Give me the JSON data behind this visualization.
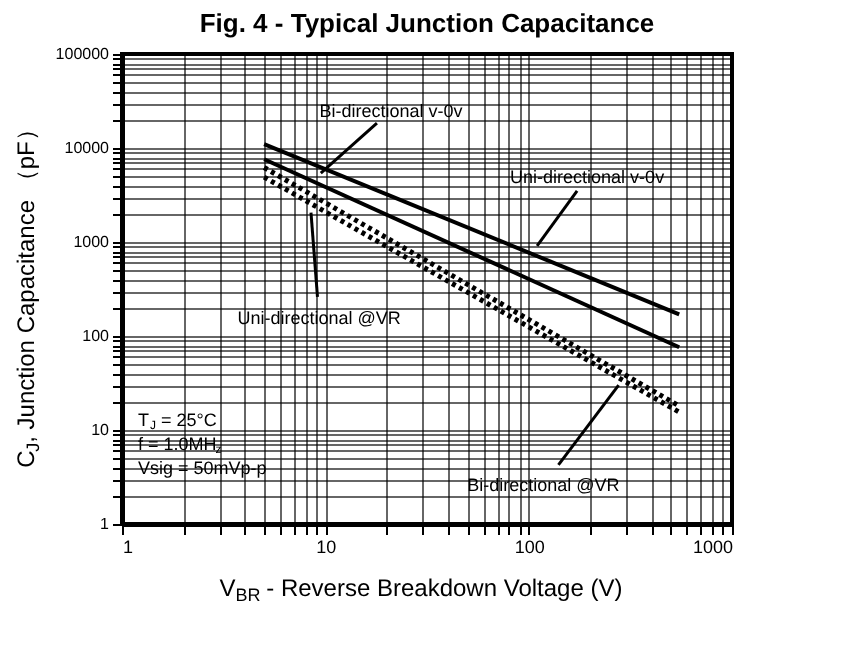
{
  "chart_data": {
    "type": "line",
    "title": "Fig. 4 - Typical Junction Capacitance",
    "xlabel": "V$_{BR}$ - Reverse Breakdown Voltage (V)",
    "ylabel": "C$_{J}$, Junction Capacitance （pF）",
    "log": "xy",
    "grid": true,
    "xlim": [
      1,
      1000
    ],
    "ylim": [
      1,
      100000
    ],
    "xticks": [
      1,
      {
        "value": 2,
        "label": null
      },
      {
        "value": 3,
        "label": null
      },
      {
        "value": 4,
        "label": null
      },
      {
        "value": 5,
        "label": null
      },
      {
        "value": 6,
        "label": null
      },
      {
        "value": 7,
        "label": null
      },
      {
        "value": 8,
        "label": null
      },
      {
        "value": 9,
        "label": null
      },
      10,
      {
        "value": 20,
        "label": null
      },
      {
        "value": 30,
        "label": null
      },
      {
        "value": 40,
        "label": null
      },
      {
        "value": 50,
        "label": null
      },
      {
        "value": 60,
        "label": null
      },
      {
        "value": 70,
        "label": null
      },
      {
        "value": 80,
        "label": null
      },
      {
        "value": 90,
        "label": null
      },
      100,
      {
        "value": 200,
        "label": null
      },
      {
        "value": 300,
        "label": null
      },
      {
        "value": 400,
        "label": null
      },
      {
        "value": 500,
        "label": null
      },
      {
        "value": 600,
        "label": null
      },
      {
        "value": 700,
        "label": null
      },
      {
        "value": 800,
        "label": null
      },
      {
        "value": 900,
        "label": null
      },
      1000
    ],
    "yticks": [
      1,
      {
        "value": 2,
        "label": null
      },
      {
        "value": 3,
        "label": null
      },
      {
        "value": 4,
        "label": null
      },
      {
        "value": 5,
        "label": null
      },
      {
        "value": 6,
        "label": null
      },
      {
        "value": 7,
        "label": null
      },
      {
        "value": 8,
        "label": null
      },
      {
        "value": 9,
        "label": null
      },
      10,
      {
        "value": 20,
        "label": null
      },
      {
        "value": 30,
        "label": null
      },
      {
        "value": 40,
        "label": null
      },
      {
        "value": 50,
        "label": null
      },
      {
        "value": 60,
        "label": null
      },
      {
        "value": 70,
        "label": null
      },
      {
        "value": 80,
        "label": null
      },
      {
        "value": 90,
        "label": null
      },
      100,
      {
        "value": 200,
        "label": null
      },
      {
        "value": 300,
        "label": null
      },
      {
        "value": 400,
        "label": null
      },
      {
        "value": 500,
        "label": null
      },
      {
        "value": 600,
        "label": null
      },
      {
        "value": 700,
        "label": null
      },
      {
        "value": 800,
        "label": null
      },
      {
        "value": 900,
        "label": null
      },
      1000,
      {
        "value": 2000,
        "label": null
      },
      {
        "value": 3000,
        "label": null
      },
      {
        "value": 4000,
        "label": null
      },
      {
        "value": 5000,
        "label": null
      },
      {
        "value": 6000,
        "label": null
      },
      {
        "value": 7000,
        "label": null
      },
      {
        "value": 8000,
        "label": null
      },
      {
        "value": 9000,
        "label": null
      },
      10000,
      {
        "value": 20000,
        "label": null
      },
      {
        "value": 30000,
        "label": null
      },
      {
        "value": 40000,
        "label": null
      },
      {
        "value": 50000,
        "label": null
      },
      {
        "value": 60000,
        "label": null
      },
      {
        "value": 70000,
        "label": null
      },
      {
        "value": 80000,
        "label": null
      },
      {
        "value": 90000,
        "label": null
      },
      100000
    ],
    "x": [
      5,
      550
    ],
    "series": [
      {
        "color": "#000000",
        "line_style": "solid",
        "values": [
          11000,
          170
        ]
      },
      {
        "color": "#000000",
        "line_style": "solid",
        "values": [
          7600,
          76
        ]
      },
      {
        "color": "#000000",
        "line_style": "dotted",
        "values": [
          6200,
          18
        ]
      },
      {
        "color": "#000000",
        "line_style": "dotted",
        "values": [
          4900,
          15.5
        ]
      }
    ],
    "annotations": [
      {
        "text": "Bi-directional v-0v",
        "x": 9.5,
        "y": 5400
      },
      {
        "text": "Uni-directional v-0v",
        "x": 110,
        "y": 910
      },
      {
        "text": "Uni-directional @VR",
        "x": 8.5,
        "y": 2050
      },
      {
        "text": "Bi-directional @VR",
        "x": 277,
        "y": 30
      },
      "T$_{J}$ = 25°C",
      "f = 1.0MH$_{z}$",
      "Vsig = 50mVp-p"
    ]
  }
}
